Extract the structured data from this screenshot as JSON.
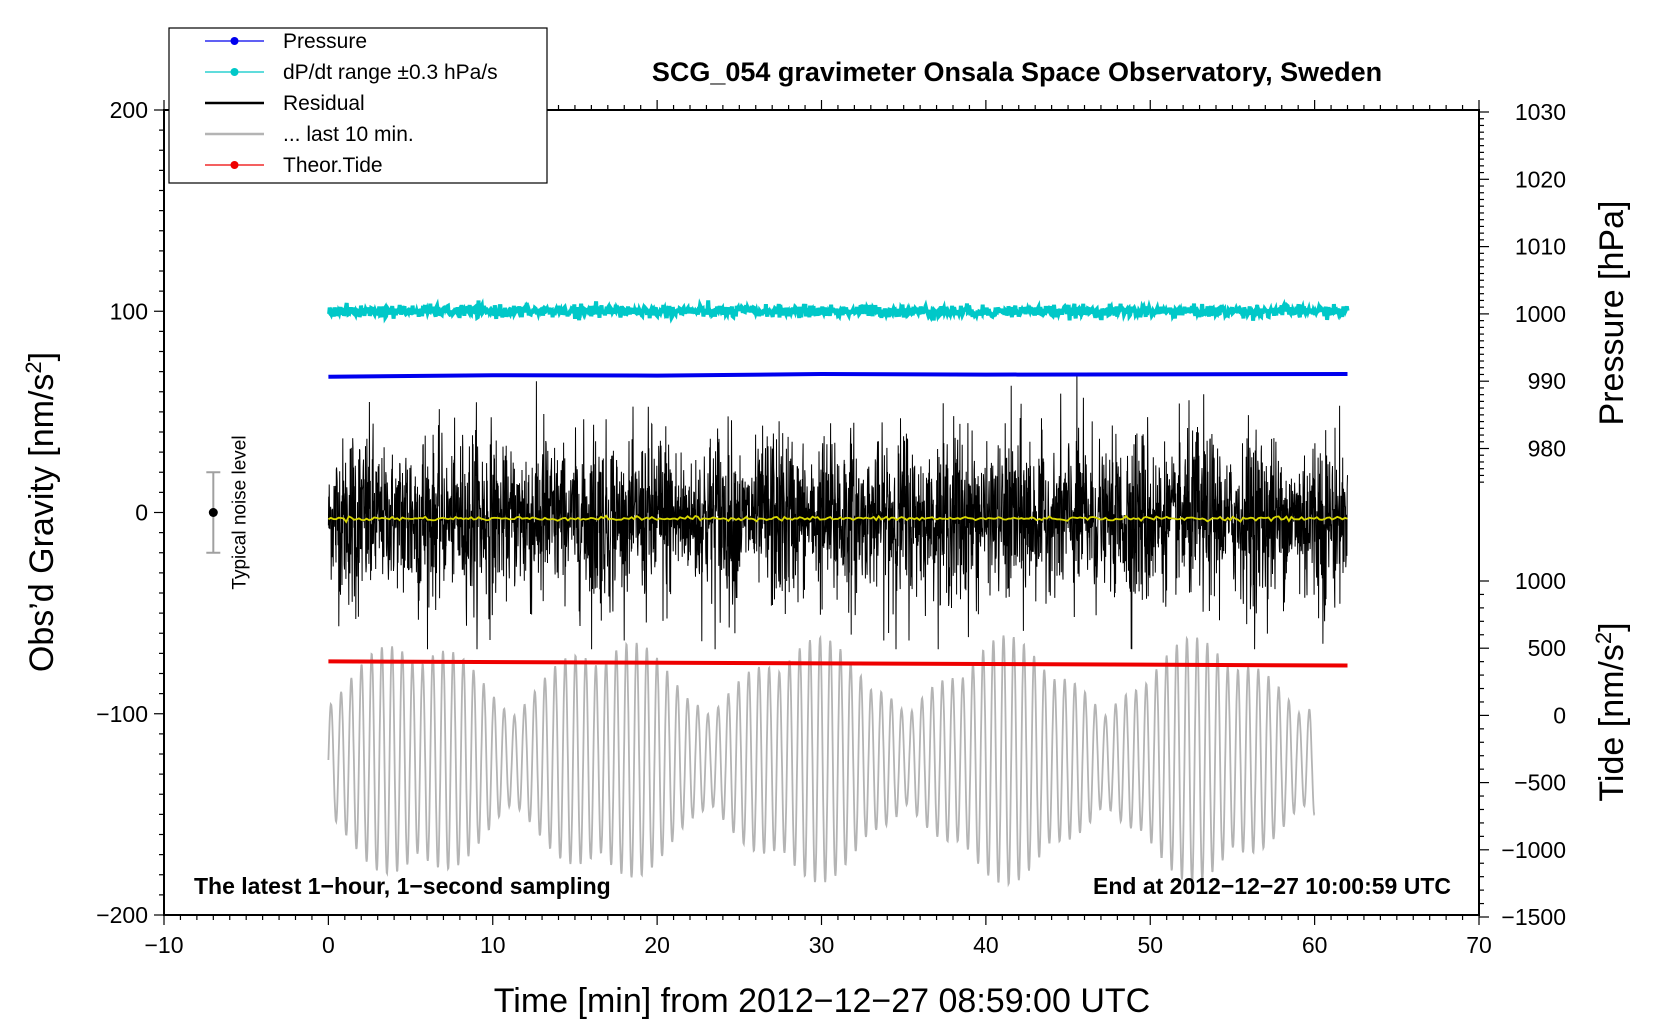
{
  "chart_data": {
    "type": "line",
    "title": "SCG_054 gravimeter Onsala Space Observatory, Sweden",
    "xlabel": "Time [min] from 2012−12−27 08:59:00 UTC",
    "ylabel_left": "Obs’d Gravity [nm/s",
    "ylabel_left_sup": "2",
    "ylabel_left_close": "]",
    "ylabel_right_pressure": "Pressure [hPa]",
    "ylabel_right_tide": "Tide [nm/s",
    "ylabel_right_tide_sup": "2",
    "ylabel_right_tide_close": "]",
    "xlim": [
      -10,
      70
    ],
    "ylim_left": [
      -200,
      200
    ],
    "pressure_axis": [
      970,
      1030
    ],
    "tide_axis": [
      -1500,
      1000
    ],
    "x_ticks": [
      {
        "v": -10,
        "label": "−10"
      },
      {
        "v": 0,
        "label": "0"
      },
      {
        "v": 10,
        "label": "10"
      },
      {
        "v": 20,
        "label": "20"
      },
      {
        "v": 30,
        "label": "30"
      },
      {
        "v": 40,
        "label": "40"
      },
      {
        "v": 50,
        "label": "50"
      },
      {
        "v": 60,
        "label": "60"
      },
      {
        "v": 70,
        "label": "70"
      }
    ],
    "y_left_ticks": [
      {
        "v": 200,
        "label": "200"
      },
      {
        "v": 100,
        "label": "100"
      },
      {
        "v": 0,
        "label": "0"
      },
      {
        "v": -100,
        "label": "−100"
      },
      {
        "v": -200,
        "label": "−200"
      }
    ],
    "pressure_ticks": [
      {
        "v": 1030,
        "label": "1030"
      },
      {
        "v": 1020,
        "label": "1020"
      },
      {
        "v": 1010,
        "label": "1010"
      },
      {
        "v": 1000,
        "label": "1000"
      },
      {
        "v": 990,
        "label": "990"
      },
      {
        "v": 980,
        "label": "980"
      }
    ],
    "tide_ticks": [
      {
        "v": 1000,
        "label": "1000"
      },
      {
        "v": 500,
        "label": "500"
      },
      {
        "v": 0,
        "label": "0"
      },
      {
        "v": -500,
        "label": "−500"
      },
      {
        "v": -1000,
        "label": "−1000"
      },
      {
        "v": -1500,
        "label": "−1500"
      }
    ],
    "legend": [
      {
        "label": "Pressure",
        "color": "#0000ee",
        "marker": true
      },
      {
        "label": "dP/dt range ±0.3 hPa/s",
        "color": "#00c8c8",
        "marker": true
      },
      {
        "label": "Residual",
        "color": "#000000",
        "marker": false
      },
      {
        "label": "... last 10 min.",
        "color": "#b4b4b4",
        "marker": false
      },
      {
        "label": "Theor.Tide",
        "color": "#ee0000",
        "marker": true
      }
    ],
    "series": {
      "pressure": {
        "name": "Pressure",
        "color": "#0000ee",
        "x": [
          0,
          10,
          20,
          30,
          40,
          50,
          62
        ],
        "y_gravity_units": [
          67.5,
          68.2,
          68.0,
          68.8,
          68.5,
          68.6,
          68.8
        ]
      },
      "dpdt": {
        "name": "dP/dt range ±0.3 hPa/s",
        "color": "#00c8c8",
        "center": 100,
        "noise": 1.5,
        "x_range": [
          0,
          62
        ]
      },
      "residual": {
        "name": "Residual",
        "color": "#000000",
        "center": -3,
        "typical_range": [
          -60,
          60
        ],
        "x_range": [
          0,
          62
        ]
      },
      "residual_mean": {
        "color": "#d8d800",
        "center": -3
      },
      "last10": {
        "name": "... last 10 min.",
        "color": "#b4b4b4",
        "x_range": [
          0,
          60
        ],
        "center": -123,
        "amp_max": 62,
        "period_min": 0.62
      },
      "theor_tide": {
        "name": "Theor.Tide",
        "color": "#ee0000",
        "x": [
          0,
          62
        ],
        "y_gravity_units": [
          -74,
          -76
        ]
      }
    },
    "noise_level": {
      "label": "Typical noise level",
      "x": -7,
      "center": 0,
      "range": [
        -20,
        20
      ]
    },
    "annotations": {
      "left": "The latest 1−hour, 1−second sampling",
      "right": "End at 2012−12−27 10:00:59 UTC"
    }
  }
}
